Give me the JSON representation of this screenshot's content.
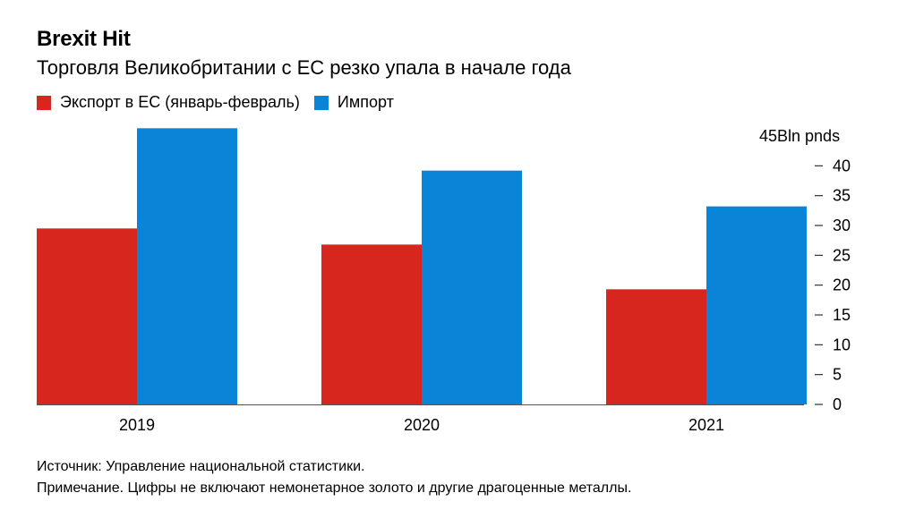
{
  "title": "Brexit Hit",
  "subtitle": "Торговля Великобритании с ЕС резко упала в начале года",
  "legend": {
    "export_label": "Экспорт в ЕС (январь-февраль)",
    "import_label": "Импорт"
  },
  "colors": {
    "export": "#d7261e",
    "import": "#0a84d6"
  },
  "chart_data": {
    "type": "bar",
    "categories": [
      "2019",
      "2020",
      "2021"
    ],
    "series": [
      {
        "name": "Экспорт в ЕС (январь-февраль)",
        "values": [
          29.5,
          26.8,
          19.3
        ]
      },
      {
        "name": "Импорт",
        "values": [
          46.3,
          39.2,
          33.2
        ]
      }
    ],
    "ylim": [
      0,
      45
    ],
    "yticks": [
      0,
      5,
      10,
      15,
      20,
      25,
      30,
      35,
      40,
      45
    ],
    "ytick_labels": [
      "0",
      "5",
      "10",
      "15",
      "20",
      "25",
      "30",
      "35",
      "40",
      "45"
    ],
    "yunit": "Bln pnds",
    "xlabel": "",
    "ylabel": "",
    "legend_position": "top-left",
    "y_axis_side": "right"
  },
  "footer": {
    "source": "Источник: Управление национальной статистики.",
    "note": "Примечание. Цифры не включают немонетарное золото и другие драгоценные металлы."
  }
}
